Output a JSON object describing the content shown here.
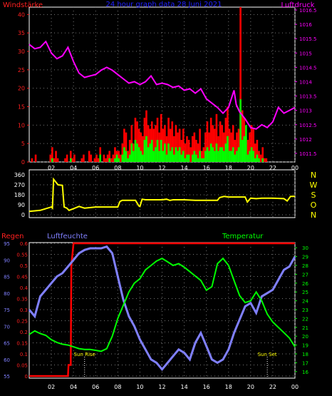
{
  "chart_data": [
    {
      "type": "line",
      "title": "24 hour graph data  28 Juni 2021",
      "left_label": "Windstärke",
      "right_label": "Luftdruck",
      "x_ticks": [
        "02",
        "04",
        "06",
        "08",
        "10",
        "12",
        "14",
        "16",
        "18",
        "20",
        "22",
        "00"
      ],
      "xlim": [
        0,
        24
      ],
      "ylim_left": [
        0,
        42
      ],
      "yticks_left": [
        "0",
        "5",
        "10",
        "15",
        "20",
        "25",
        "30",
        "35",
        "40"
      ],
      "ylim_right": [
        1011.2,
        1016.6
      ],
      "yticks_right": [
        "1011.5",
        "1012",
        "1012.5",
        "1013",
        "1013.5",
        "1014",
        "1014.5",
        "1015",
        "1015.5",
        "1016",
        "1016.5"
      ],
      "grid": true,
      "pressure": {
        "name": "Luftdruck",
        "color": "#ff00ff",
        "x": [
          0,
          0.5,
          1,
          1.5,
          2,
          2.5,
          3,
          3.5,
          4,
          4.5,
          5,
          5.5,
          6,
          6.5,
          7,
          7.5,
          8,
          8.5,
          9,
          9.5,
          10,
          10.5,
          11,
          11.5,
          12,
          12.5,
          13,
          13.5,
          14,
          14.5,
          15,
          15.5,
          16,
          16.5,
          17,
          17.5,
          18,
          18.5,
          18.7,
          19,
          19.5,
          20,
          20.5,
          21,
          21.5,
          22,
          22.5,
          23,
          23.5,
          24
        ],
        "y": [
          1015.3,
          1015.15,
          1015.2,
          1015.4,
          1015.0,
          1014.8,
          1014.9,
          1015.2,
          1014.7,
          1014.3,
          1014.15,
          1014.2,
          1014.25,
          1014.4,
          1014.5,
          1014.4,
          1014.25,
          1014.1,
          1013.95,
          1014.0,
          1013.9,
          1014.0,
          1014.2,
          1013.9,
          1013.95,
          1013.9,
          1013.8,
          1013.85,
          1013.7,
          1013.75,
          1013.6,
          1013.75,
          1013.4,
          1013.25,
          1013.1,
          1012.9,
          1013.1,
          1013.7,
          1013.2,
          1012.95,
          1012.7,
          1012.4,
          1012.35,
          1012.5,
          1012.4,
          1012.6,
          1013.1,
          1012.9,
          1013.0,
          1013.1
        ]
      },
      "wind": {
        "gust_name": "Böen",
        "gust_color": "#ff0000",
        "mean_name": "Windstärke",
        "mean_color": "#00ff00",
        "gust": [
          0,
          1,
          0,
          2,
          0,
          0,
          0,
          0,
          0,
          0,
          0,
          2,
          4,
          1,
          3,
          1,
          0,
          0,
          0,
          1,
          2,
          0,
          3,
          1,
          2,
          0,
          0,
          0,
          1,
          2,
          0,
          0,
          3,
          2,
          0,
          1,
          2,
          1,
          4,
          0,
          2,
          1,
          2,
          3,
          1,
          2,
          4,
          3,
          3,
          2,
          5,
          9,
          8,
          3,
          6,
          10,
          5,
          12,
          11,
          9,
          8,
          7,
          12,
          14,
          10,
          9,
          11,
          9,
          10,
          12,
          8,
          13,
          9,
          10,
          7,
          12,
          9,
          11,
          7,
          10,
          8,
          9,
          6,
          9,
          5,
          7,
          6,
          4,
          7,
          8,
          6,
          5,
          9,
          3,
          4,
          8,
          11,
          8,
          12,
          10,
          9,
          13,
          7,
          11,
          10,
          8,
          12,
          15,
          9,
          8,
          10,
          6,
          8,
          9,
          42,
          14,
          12,
          7,
          6,
          8,
          10,
          9,
          5,
          6,
          3,
          2,
          4,
          1,
          1,
          0,
          0,
          0,
          0,
          0,
          0,
          0,
          0,
          0,
          0,
          0,
          0,
          0,
          0,
          0
        ],
        "mean": [
          0,
          0,
          0,
          0,
          0,
          0,
          0,
          0,
          0,
          0,
          0,
          0,
          1,
          0,
          0,
          0,
          0,
          0,
          0,
          0,
          0,
          0,
          1,
          0,
          0,
          0,
          0,
          0,
          0,
          0,
          0,
          0,
          0,
          0,
          0,
          0,
          0,
          0,
          2,
          0,
          0,
          0,
          0,
          1,
          0,
          0,
          1,
          2,
          1,
          0,
          2,
          4,
          3,
          1,
          2,
          5,
          3,
          6,
          5,
          4,
          3,
          2,
          6,
          7,
          4,
          5,
          6,
          3,
          4,
          6,
          3,
          6,
          3,
          5,
          2,
          5,
          3,
          4,
          2,
          4,
          3,
          4,
          2,
          3,
          1,
          2,
          2,
          0,
          2,
          3,
          2,
          1,
          3,
          1,
          1,
          3,
          4,
          3,
          5,
          4,
          3,
          5,
          3,
          4,
          4,
          3,
          5,
          7,
          3,
          3,
          4,
          2,
          3,
          4,
          17,
          6,
          7,
          10,
          2,
          3,
          4,
          3,
          1,
          2,
          1,
          0,
          1,
          0,
          0,
          0,
          0,
          0,
          0,
          0,
          0,
          0,
          0,
          0,
          0,
          0,
          0,
          0,
          0,
          0
        ]
      }
    },
    {
      "type": "line",
      "name": "Windrichtung",
      "color": "#ffff00",
      "x_ticks": [
        "02",
        "04",
        "06",
        "08",
        "10",
        "12",
        "14",
        "16",
        "18",
        "20",
        "22",
        "00"
      ],
      "xlim": [
        0,
        24
      ],
      "ylim": [
        0,
        360
      ],
      "yticks": [
        "0",
        "90",
        "180",
        "270",
        "360"
      ],
      "compass_labels": [
        "N",
        "W",
        "S",
        "O",
        "N"
      ],
      "x": [
        0,
        1,
        1.5,
        2,
        2.1,
        2.2,
        2.6,
        3.0,
        3.15,
        3.4,
        3.6,
        4,
        4.5,
        5,
        6,
        7,
        8,
        8.2,
        8.4,
        9,
        9.6,
        9.9,
        10.0,
        10.2,
        10.5,
        11,
        12,
        12.4,
        12.7,
        13,
        14,
        15,
        16,
        17,
        17.2,
        17.6,
        18,
        19.5,
        19.7,
        20,
        20.5,
        21,
        22,
        23,
        23.3,
        23.6,
        24
      ],
      "y": [
        30,
        40,
        55,
        70,
        60,
        320,
        270,
        265,
        70,
        60,
        40,
        55,
        75,
        60,
        70,
        70,
        70,
        120,
        130,
        130,
        130,
        80,
        75,
        140,
        135,
        135,
        135,
        140,
        130,
        135,
        135,
        130,
        130,
        130,
        155,
        165,
        160,
        160,
        115,
        150,
        145,
        150,
        150,
        145,
        125,
        165,
        165
      ]
    },
    {
      "type": "line",
      "left_label": "Regen",
      "humidity_label": "Luftfeuchte",
      "temperature_label": "Temperatur",
      "x_ticks": [
        "02",
        "04",
        "06",
        "08",
        "10",
        "12",
        "14",
        "16",
        "18",
        "20",
        "22",
        "00"
      ],
      "xlim": [
        0,
        24
      ],
      "yticks_rain": [
        "0",
        "0.05",
        "0.1",
        "0.15",
        "0.2",
        "0.25",
        "0.3",
        "0.35",
        "0.4",
        "0.45",
        "0.5",
        "0.55",
        "0.6"
      ],
      "ylim_rain": [
        0,
        0.6
      ],
      "yticks_humidity": [
        "55",
        "60",
        "65",
        "70",
        "75",
        "80",
        "85",
        "90",
        "95"
      ],
      "ylim_humidity": [
        55,
        95
      ],
      "yticks_temperature": [
        "16",
        "17",
        "18",
        "19",
        "20",
        "21",
        "22",
        "23",
        "24",
        "25",
        "26",
        "27",
        "28",
        "29",
        "30"
      ],
      "ylim_temperature": [
        15.5,
        30.5
      ],
      "annotations": [
        "Sun Rise",
        "Sun Set"
      ],
      "annotation_x": [
        5.0,
        21.5
      ],
      "rain": {
        "name": "Regen",
        "color": "#ff0000",
        "x": [
          0,
          3.5,
          3.55,
          3.75,
          3.8,
          4.0,
          24
        ],
        "y": [
          0,
          0,
          0.05,
          0.05,
          0.5,
          0.6,
          0.6
        ]
      },
      "humidity": {
        "name": "Luftfeuchte",
        "color": "#8080ff",
        "x": [
          0,
          0.5,
          1,
          1.5,
          2,
          2.5,
          3,
          3.5,
          4,
          4.5,
          5,
          5.5,
          6,
          6.5,
          7,
          7.5,
          8,
          8.5,
          9,
          9.5,
          10,
          10.5,
          11,
          11.5,
          12,
          12.5,
          13,
          13.5,
          14,
          14.5,
          15,
          15.5,
          16,
          16.5,
          17,
          17.5,
          18,
          18.5,
          19,
          19.5,
          20,
          20.5,
          21,
          21.5,
          22,
          22.5,
          23,
          23.5,
          24
        ],
        "y": [
          75,
          73,
          79,
          81,
          83,
          85,
          86,
          88,
          90,
          92,
          93,
          93.5,
          93.5,
          93.5,
          94,
          92,
          85,
          78,
          73,
          70,
          66,
          63,
          60,
          59,
          57,
          59,
          61,
          63,
          62,
          60,
          65,
          68,
          64,
          60,
          59,
          60,
          63,
          68,
          72,
          76,
          77,
          74,
          79,
          80,
          81,
          84,
          87,
          88,
          91
        ]
      },
      "temperature": {
        "name": "Temperatur",
        "color": "#00ff00",
        "x": [
          0,
          0.5,
          1,
          1.5,
          2,
          2.5,
          3,
          3.5,
          4,
          4.5,
          5,
          5.5,
          6,
          6.5,
          7,
          7.5,
          8,
          8.5,
          9,
          9.5,
          10,
          10.5,
          11,
          11.5,
          12,
          12.5,
          13,
          13.5,
          14,
          14.5,
          15,
          15.5,
          16,
          16.5,
          17,
          17.5,
          18,
          18.5,
          19,
          19.5,
          20,
          20.5,
          21,
          21.5,
          22,
          22.5,
          23,
          23.5,
          24
        ],
        "y": [
          20.2,
          20.6,
          20.3,
          20.1,
          19.6,
          19.3,
          19.1,
          19.0,
          18.8,
          18.6,
          18.5,
          18.5,
          18.4,
          18.3,
          18.6,
          20.0,
          22.0,
          23.5,
          25.0,
          26.0,
          26.5,
          27.5,
          28.0,
          28.5,
          28.8,
          28.4,
          28.0,
          28.2,
          27.8,
          27.3,
          26.8,
          26.3,
          25.2,
          25.6,
          28.2,
          28.8,
          28.0,
          26.3,
          24.6,
          23.8,
          24.0,
          25.0,
          24.0,
          22.5,
          21.6,
          21.0,
          20.4,
          19.8,
          18.8
        ]
      }
    }
  ]
}
